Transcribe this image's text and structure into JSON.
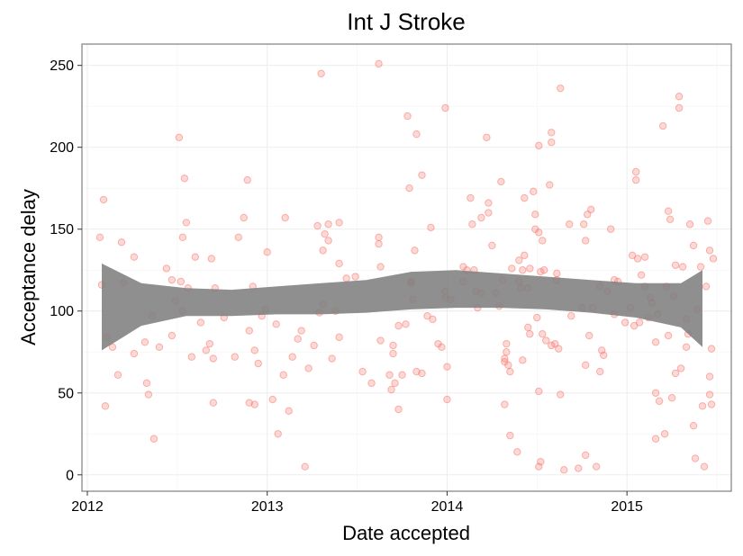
{
  "chart_data": {
    "type": "scatter",
    "title": "Int J Stroke",
    "xlabel": "Date accepted",
    "ylabel": "Acceptance delay",
    "xlim": [
      2011.97,
      2015.58
    ],
    "ylim": [
      -10,
      263
    ],
    "x_ticks": [
      {
        "value": 2012,
        "label": "2012"
      },
      {
        "value": 2013,
        "label": "2013"
      },
      {
        "value": 2014,
        "label": "2014"
      },
      {
        "value": 2015,
        "label": "2015"
      }
    ],
    "y_ticks": [
      {
        "value": 0,
        "label": "0"
      },
      {
        "value": 50,
        "label": "50"
      },
      {
        "value": 100,
        "label": "100"
      },
      {
        "value": 150,
        "label": "150"
      },
      {
        "value": 200,
        "label": "200"
      },
      {
        "value": 250,
        "label": "250"
      }
    ],
    "grid": true,
    "point_color": "#f8766d",
    "band_color": "#7f7f7f",
    "points": [
      [
        2012.07,
        145
      ],
      [
        2012.08,
        116
      ],
      [
        2012.09,
        168
      ],
      [
        2012.1,
        42
      ],
      [
        2012.11,
        84
      ],
      [
        2012.14,
        78
      ],
      [
        2012.17,
        61
      ],
      [
        2012.19,
        142
      ],
      [
        2012.2,
        117
      ],
      [
        2012.26,
        133
      ],
      [
        2012.26,
        74
      ],
      [
        2012.32,
        81
      ],
      [
        2012.33,
        56
      ],
      [
        2012.34,
        49
      ],
      [
        2012.36,
        97
      ],
      [
        2012.37,
        22
      ],
      [
        2012.4,
        78
      ],
      [
        2012.44,
        126
      ],
      [
        2012.47,
        85
      ],
      [
        2012.47,
        119
      ],
      [
        2012.49,
        106
      ],
      [
        2012.51,
        206
      ],
      [
        2012.52,
        118
      ],
      [
        2012.53,
        100
      ],
      [
        2012.53,
        145
      ],
      [
        2012.54,
        181
      ],
      [
        2012.55,
        154
      ],
      [
        2012.56,
        114
      ],
      [
        2012.58,
        72
      ],
      [
        2012.6,
        133
      ],
      [
        2012.63,
        93
      ],
      [
        2012.66,
        76
      ],
      [
        2012.68,
        80
      ],
      [
        2012.69,
        132
      ],
      [
        2012.7,
        71
      ],
      [
        2012.7,
        44
      ],
      [
        2012.71,
        114
      ],
      [
        2012.76,
        96
      ],
      [
        2012.82,
        72
      ],
      [
        2012.84,
        145
      ],
      [
        2012.87,
        157
      ],
      [
        2012.89,
        180
      ],
      [
        2012.9,
        88
      ],
      [
        2012.9,
        44
      ],
      [
        2012.92,
        115
      ],
      [
        2012.93,
        76
      ],
      [
        2012.93,
        43
      ],
      [
        2012.95,
        68
      ],
      [
        2012.97,
        97
      ],
      [
        2012.99,
        101
      ],
      [
        2013.0,
        136
      ],
      [
        2013.03,
        46
      ],
      [
        2013.05,
        92
      ],
      [
        2013.06,
        25
      ],
      [
        2013.09,
        61
      ],
      [
        2013.1,
        157
      ],
      [
        2013.12,
        39
      ],
      [
        2013.14,
        72
      ],
      [
        2013.17,
        83
      ],
      [
        2013.19,
        88
      ],
      [
        2013.21,
        5
      ],
      [
        2013.23,
        65
      ],
      [
        2013.26,
        79
      ],
      [
        2013.28,
        152
      ],
      [
        2013.29,
        99
      ],
      [
        2013.3,
        245
      ],
      [
        2013.31,
        104
      ],
      [
        2013.31,
        137
      ],
      [
        2013.32,
        147
      ],
      [
        2013.34,
        153
      ],
      [
        2013.34,
        143
      ],
      [
        2013.36,
        71
      ],
      [
        2013.38,
        100
      ],
      [
        2013.4,
        154
      ],
      [
        2013.4,
        84
      ],
      [
        2013.4,
        129
      ],
      [
        2013.44,
        120
      ],
      [
        2013.49,
        121
      ],
      [
        2013.53,
        63
      ],
      [
        2013.58,
        56
      ],
      [
        2013.62,
        251
      ],
      [
        2013.62,
        145
      ],
      [
        2013.62,
        141
      ],
      [
        2013.63,
        82
      ],
      [
        2013.63,
        127
      ],
      [
        2013.68,
        61
      ],
      [
        2013.69,
        52
      ],
      [
        2013.7,
        79
      ],
      [
        2013.7,
        74
      ],
      [
        2013.71,
        56
      ],
      [
        2013.73,
        40
      ],
      [
        2013.73,
        91
      ],
      [
        2013.75,
        61
      ],
      [
        2013.77,
        92
      ],
      [
        2013.78,
        219
      ],
      [
        2013.79,
        175
      ],
      [
        2013.8,
        118
      ],
      [
        2013.8,
        117
      ],
      [
        2013.81,
        107
      ],
      [
        2013.82,
        137
      ],
      [
        2013.83,
        63
      ],
      [
        2013.83,
        208
      ],
      [
        2013.86,
        62
      ],
      [
        2013.86,
        183
      ],
      [
        2013.89,
        97
      ],
      [
        2013.91,
        151
      ],
      [
        2013.92,
        95
      ],
      [
        2013.95,
        80
      ],
      [
        2013.97,
        78
      ],
      [
        2013.99,
        224
      ],
      [
        2013.99,
        108
      ],
      [
        2013.99,
        112
      ],
      [
        2014.0,
        66
      ],
      [
        2014.0,
        46
      ],
      [
        2014.02,
        107
      ],
      [
        2014.09,
        127
      ],
      [
        2014.09,
        118
      ],
      [
        2014.11,
        125
      ],
      [
        2014.13,
        169
      ],
      [
        2014.14,
        153
      ],
      [
        2014.15,
        125
      ],
      [
        2014.16,
        112
      ],
      [
        2014.17,
        102
      ],
      [
        2014.19,
        157
      ],
      [
        2014.19,
        111
      ],
      [
        2014.22,
        206
      ],
      [
        2014.23,
        160
      ],
      [
        2014.23,
        166
      ],
      [
        2014.25,
        140
      ],
      [
        2014.27,
        111
      ],
      [
        2014.29,
        103
      ],
      [
        2014.3,
        179
      ],
      [
        2014.31,
        119
      ],
      [
        2014.32,
        43
      ],
      [
        2014.32,
        69
      ],
      [
        2014.32,
        71
      ],
      [
        2014.33,
        80
      ],
      [
        2014.33,
        75
      ],
      [
        2014.34,
        67
      ],
      [
        2014.35,
        63
      ],
      [
        2014.35,
        24
      ],
      [
        2014.36,
        126
      ],
      [
        2014.39,
        14
      ],
      [
        2014.4,
        131
      ],
      [
        2014.4,
        118
      ],
      [
        2014.41,
        114
      ],
      [
        2014.42,
        70
      ],
      [
        2014.42,
        125
      ],
      [
        2014.43,
        134
      ],
      [
        2014.43,
        169
      ],
      [
        2014.45,
        114
      ],
      [
        2014.45,
        90
      ],
      [
        2014.46,
        126
      ],
      [
        2014.46,
        86
      ],
      [
        2014.48,
        173
      ],
      [
        2014.49,
        159
      ],
      [
        2014.49,
        150
      ],
      [
        2014.5,
        96
      ],
      [
        2014.51,
        201
      ],
      [
        2014.51,
        148
      ],
      [
        2014.51,
        51
      ],
      [
        2014.51,
        5
      ],
      [
        2014.52,
        8
      ],
      [
        2014.52,
        124
      ],
      [
        2014.53,
        143
      ],
      [
        2014.53,
        86
      ],
      [
        2014.54,
        125
      ],
      [
        2014.55,
        82
      ],
      [
        2014.57,
        177
      ],
      [
        2014.58,
        203
      ],
      [
        2014.58,
        79
      ],
      [
        2014.58,
        209
      ],
      [
        2014.6,
        80
      ],
      [
        2014.61,
        119
      ],
      [
        2014.61,
        123
      ],
      [
        2014.62,
        77
      ],
      [
        2014.63,
        236
      ],
      [
        2014.63,
        49
      ],
      [
        2014.65,
        3
      ],
      [
        2014.68,
        153
      ],
      [
        2014.69,
        97
      ],
      [
        2014.73,
        4
      ],
      [
        2014.75,
        102
      ],
      [
        2014.76,
        153
      ],
      [
        2014.77,
        12
      ],
      [
        2014.77,
        67
      ],
      [
        2014.77,
        143
      ],
      [
        2014.78,
        159
      ],
      [
        2014.79,
        85
      ],
      [
        2014.8,
        162
      ],
      [
        2014.81,
        102
      ],
      [
        2014.83,
        5
      ],
      [
        2014.85,
        63
      ],
      [
        2014.85,
        115
      ],
      [
        2014.86,
        76
      ],
      [
        2014.87,
        73
      ],
      [
        2014.89,
        112
      ],
      [
        2014.91,
        150
      ],
      [
        2014.93,
        98
      ],
      [
        2014.93,
        119
      ],
      [
        2014.95,
        118
      ],
      [
        2014.99,
        93
      ],
      [
        2015.02,
        102
      ],
      [
        2015.03,
        134
      ],
      [
        2015.04,
        91
      ],
      [
        2015.05,
        180
      ],
      [
        2015.05,
        185
      ],
      [
        2015.06,
        132
      ],
      [
        2015.07,
        93
      ],
      [
        2015.08,
        122
      ],
      [
        2015.1,
        133
      ],
      [
        2015.1,
        115
      ],
      [
        2015.12,
        96
      ],
      [
        2015.13,
        108
      ],
      [
        2015.14,
        105
      ],
      [
        2015.16,
        50
      ],
      [
        2015.16,
        22
      ],
      [
        2015.16,
        81
      ],
      [
        2015.17,
        98
      ],
      [
        2015.18,
        45
      ],
      [
        2015.2,
        213
      ],
      [
        2015.21,
        25
      ],
      [
        2015.22,
        115
      ],
      [
        2015.23,
        161
      ],
      [
        2015.23,
        85
      ],
      [
        2015.24,
        156
      ],
      [
        2015.25,
        47
      ],
      [
        2015.26,
        109
      ],
      [
        2015.27,
        128
      ],
      [
        2015.27,
        62
      ],
      [
        2015.29,
        224
      ],
      [
        2015.29,
        231
      ],
      [
        2015.3,
        65
      ],
      [
        2015.31,
        127
      ],
      [
        2015.33,
        95
      ],
      [
        2015.33,
        78
      ],
      [
        2015.34,
        86
      ],
      [
        2015.35,
        153
      ],
      [
        2015.37,
        30
      ],
      [
        2015.37,
        140
      ],
      [
        2015.38,
        10
      ],
      [
        2015.39,
        101
      ],
      [
        2015.41,
        127
      ],
      [
        2015.42,
        42
      ],
      [
        2015.43,
        5
      ],
      [
        2015.44,
        115
      ],
      [
        2015.45,
        155
      ],
      [
        2015.46,
        137
      ],
      [
        2015.46,
        60
      ],
      [
        2015.46,
        49
      ],
      [
        2015.47,
        43
      ],
      [
        2015.47,
        77
      ],
      [
        2015.48,
        132
      ]
    ],
    "smooth_band": {
      "x": [
        2012.08,
        2012.3,
        2012.55,
        2012.8,
        2013.05,
        2013.3,
        2013.55,
        2013.8,
        2014.05,
        2014.3,
        2014.55,
        2014.8,
        2015.05,
        2015.3,
        2015.42
      ],
      "lower": [
        76,
        91,
        97,
        97,
        98,
        98,
        99,
        101,
        102,
        102,
        101,
        99,
        96,
        90,
        78
      ],
      "upper": [
        129,
        117,
        114,
        113,
        115,
        117,
        119,
        124,
        125,
        123,
        121,
        119,
        117,
        117,
        125
      ]
    }
  }
}
